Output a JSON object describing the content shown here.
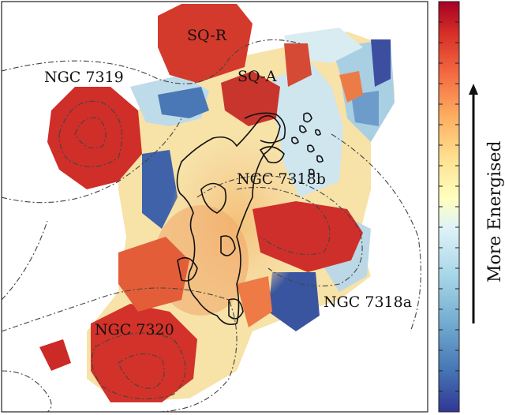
{
  "chart_data": {
    "type": "heatmap",
    "title": "",
    "colormap": "RdYlBu_r",
    "colorbar": {
      "label": "More Energised",
      "arrow": "up",
      "tick_count": 20
    },
    "region_labels": [
      "SQ-R",
      "SQ-A",
      "NGC 7319",
      "NGC 7318b",
      "NGC 7318a",
      "NGC 7320"
    ],
    "grid": false,
    "legend": "none"
  }
}
